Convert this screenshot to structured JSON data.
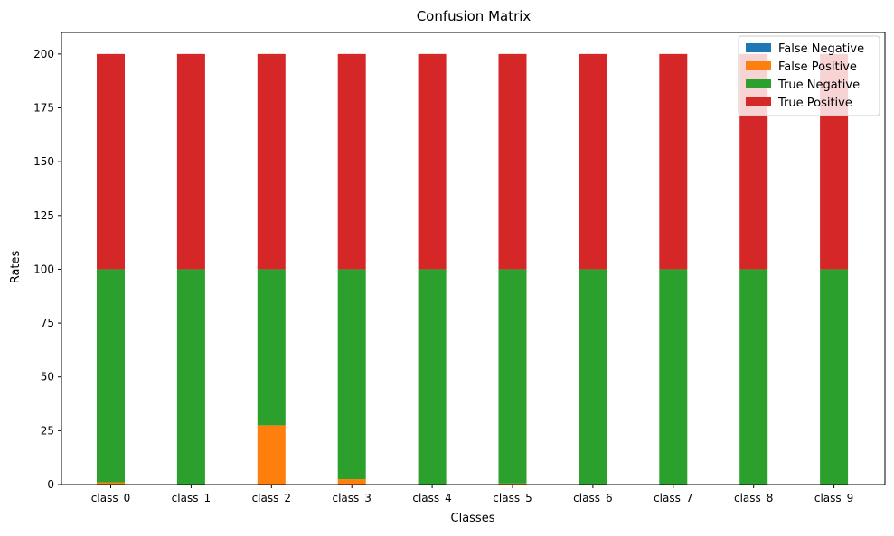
{
  "chart_data": {
    "type": "bar",
    "stacked": true,
    "title": "Confusion Matrix",
    "xlabel": "Classes",
    "ylabel": "Rates",
    "ylim": [
      0,
      210
    ],
    "yticks": [
      0,
      25,
      50,
      75,
      100,
      125,
      150,
      175,
      200
    ],
    "grid": false,
    "legend_position": "top-right",
    "categories": [
      "class_0",
      "class_1",
      "class_2",
      "class_3",
      "class_4",
      "class_5",
      "class_6",
      "class_7",
      "class_8",
      "class_9"
    ],
    "series": [
      {
        "name": "False Negative",
        "color": "#1f77b4",
        "values": [
          0,
          0,
          0,
          0,
          0,
          0,
          0,
          0,
          0,
          0
        ]
      },
      {
        "name": "False Positive",
        "color": "#ff7f0e",
        "values": [
          1,
          0,
          27.5,
          2.5,
          0,
          0.5,
          0,
          0,
          0,
          0
        ]
      },
      {
        "name": "True Negative",
        "color": "#2ca02c",
        "values": [
          99,
          100,
          72.5,
          97.5,
          100,
          99.5,
          100,
          100,
          100,
          100
        ]
      },
      {
        "name": "True Positive",
        "color": "#d62728",
        "values": [
          100,
          100,
          100,
          100,
          100,
          100,
          100,
          100,
          100,
          100
        ]
      }
    ]
  }
}
